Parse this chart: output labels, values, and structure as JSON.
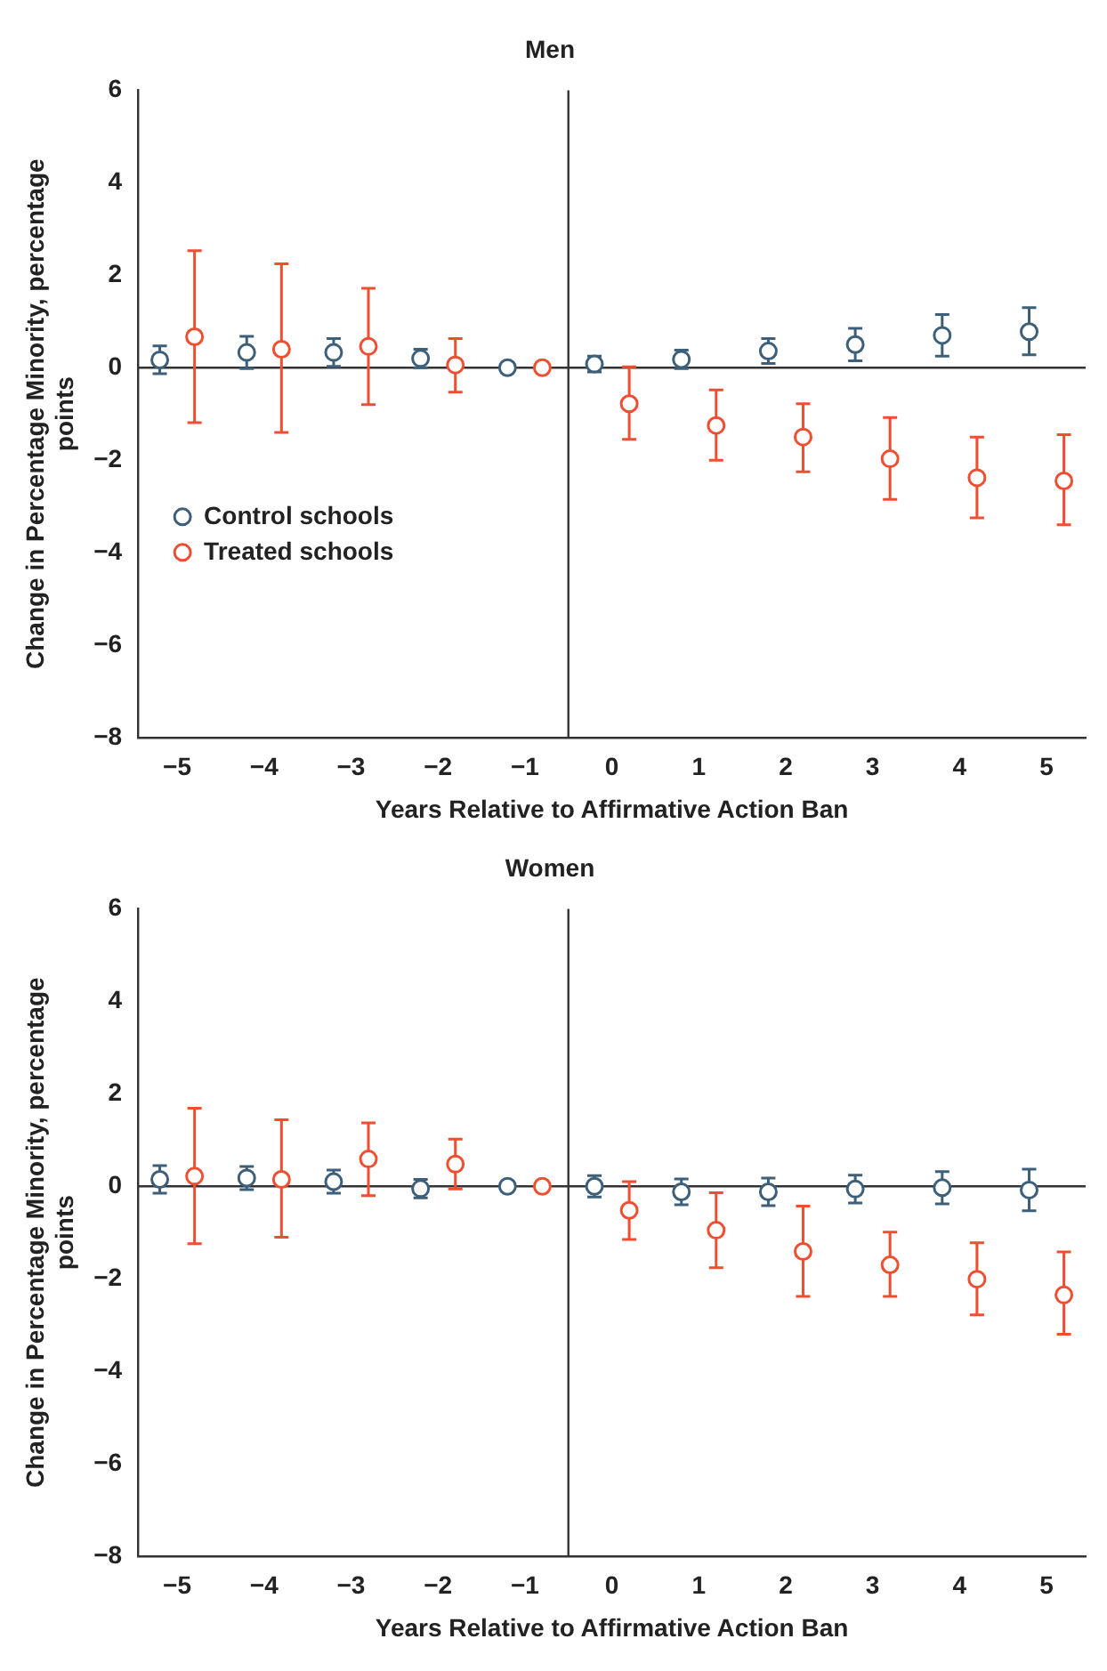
{
  "chart_data": [
    {
      "type": "scatter",
      "title": "Men",
      "xlabel": "Years Relative to Affirmative Action Ban",
      "ylabel": "Change in Percentage Minority, percentage points",
      "xlim": [
        -5.45,
        5.45
      ],
      "xticks": [
        -5,
        -4,
        -3,
        -2,
        -1,
        0,
        1,
        2,
        3,
        4,
        5
      ],
      "ylim": [
        -8,
        6
      ],
      "yticks": [
        -8,
        -6,
        -4,
        -2,
        0,
        2,
        4,
        6
      ],
      "grid": false,
      "legend": "bottom left",
      "marker": "circle",
      "ref_lines": [
        {
          "axis": "x",
          "value": -0.5,
          "color": "#333333"
        },
        {
          "axis": "y",
          "value": 0,
          "color": "#333333"
        }
      ],
      "series": [
        {
          "name": "Control schools",
          "color": "#3d5f7a",
          "x": [
            -5.2,
            -4.2,
            -3.2,
            -2.2,
            -1.2,
            -0.2,
            0.8,
            1.8,
            2.8,
            3.8,
            4.8
          ],
          "values": [
            0.17,
            0.33,
            0.33,
            0.2,
            0,
            0.08,
            0.18,
            0.36,
            0.5,
            0.7,
            0.78
          ],
          "errors": [
            [
              -0.13,
              0.47
            ],
            [
              -0.02,
              0.68
            ],
            [
              0.03,
              0.63
            ],
            [
              0,
              0.4
            ],
            null,
            [
              -0.09,
              0.25
            ],
            [
              -0.02,
              0.38
            ],
            [
              0.09,
              0.63
            ],
            [
              0.15,
              0.85
            ],
            [
              0.25,
              1.15
            ],
            [
              0.28,
              1.3
            ]
          ]
        },
        {
          "name": "Treated schools",
          "color": "#f04e30",
          "x": [
            -4.8,
            -3.8,
            -2.8,
            -1.8,
            -0.8,
            0.2,
            1.2,
            2.2,
            3.2,
            4.2,
            5.2
          ],
          "values": [
            0.67,
            0.4,
            0.46,
            0.06,
            0,
            -0.78,
            -1.25,
            -1.5,
            -1.97,
            -2.38,
            -2.45
          ],
          "errors": [
            [
              -1.19,
              2.53
            ],
            [
              -1.4,
              2.25
            ],
            [
              -0.8,
              1.72
            ],
            [
              -0.53,
              0.63
            ],
            null,
            [
              -1.55,
              0.02
            ],
            [
              -2.0,
              -0.48
            ],
            [
              -2.25,
              -0.78
            ],
            [
              -2.85,
              -1.08
            ],
            [
              -3.25,
              -1.5
            ],
            [
              -3.4,
              -1.45
            ]
          ]
        }
      ]
    },
    {
      "type": "scatter",
      "title": "Women",
      "xlabel": "Years Relative to Affirmative Action Ban",
      "ylabel": "Change in Percentage Minority, percentage points",
      "xlim": [
        -5.45,
        5.45
      ],
      "xticks": [
        -5,
        -4,
        -3,
        -2,
        -1,
        0,
        1,
        2,
        3,
        4,
        5
      ],
      "ylim": [
        -8,
        6
      ],
      "yticks": [
        -8,
        -6,
        -4,
        -2,
        0,
        2,
        4,
        6
      ],
      "grid": false,
      "marker": "circle",
      "ref_lines": [
        {
          "axis": "x",
          "value": -0.5,
          "color": "#333333"
        },
        {
          "axis": "y",
          "value": 0,
          "color": "#333333"
        }
      ],
      "series": [
        {
          "color": "#3d5f7a",
          "x": [
            -5.2,
            -4.2,
            -3.2,
            -2.2,
            -1.2,
            -0.2,
            0.8,
            1.8,
            2.8,
            3.8,
            4.8
          ],
          "values": [
            0.15,
            0.18,
            0.1,
            -0.05,
            0,
            0,
            -0.12,
            -0.12,
            -0.06,
            -0.03,
            -0.08
          ],
          "errors": [
            [
              -0.15,
              0.45
            ],
            [
              -0.07,
              0.43
            ],
            [
              -0.15,
              0.35
            ],
            [
              -0.25,
              0.15
            ],
            null,
            [
              -0.23,
              0.23
            ],
            [
              -0.4,
              0.16
            ],
            [
              -0.42,
              0.18
            ],
            [
              -0.36,
              0.24
            ],
            [
              -0.38,
              0.32
            ],
            [
              -0.53,
              0.37
            ]
          ]
        },
        {
          "color": "#f04e30",
          "x": [
            -4.8,
            -3.8,
            -2.8,
            -1.8,
            -0.8,
            0.2,
            1.2,
            2.2,
            3.2,
            4.2,
            5.2
          ],
          "values": [
            0.22,
            0.15,
            0.59,
            0.48,
            0,
            -0.52,
            -0.95,
            -1.41,
            -1.7,
            -2.01,
            -2.35
          ],
          "errors": [
            [
              -1.24,
              1.69
            ],
            [
              -1.1,
              1.44
            ],
            [
              -0.2,
              1.37
            ],
            [
              -0.06,
              1.02
            ],
            null,
            [
              -1.15,
              0.1
            ],
            [
              -1.76,
              -0.14
            ],
            [
              -2.38,
              -0.43
            ],
            [
              -2.38,
              -0.99
            ],
            [
              -2.78,
              -1.22
            ],
            [
              -3.2,
              -1.42
            ]
          ]
        }
      ]
    }
  ]
}
